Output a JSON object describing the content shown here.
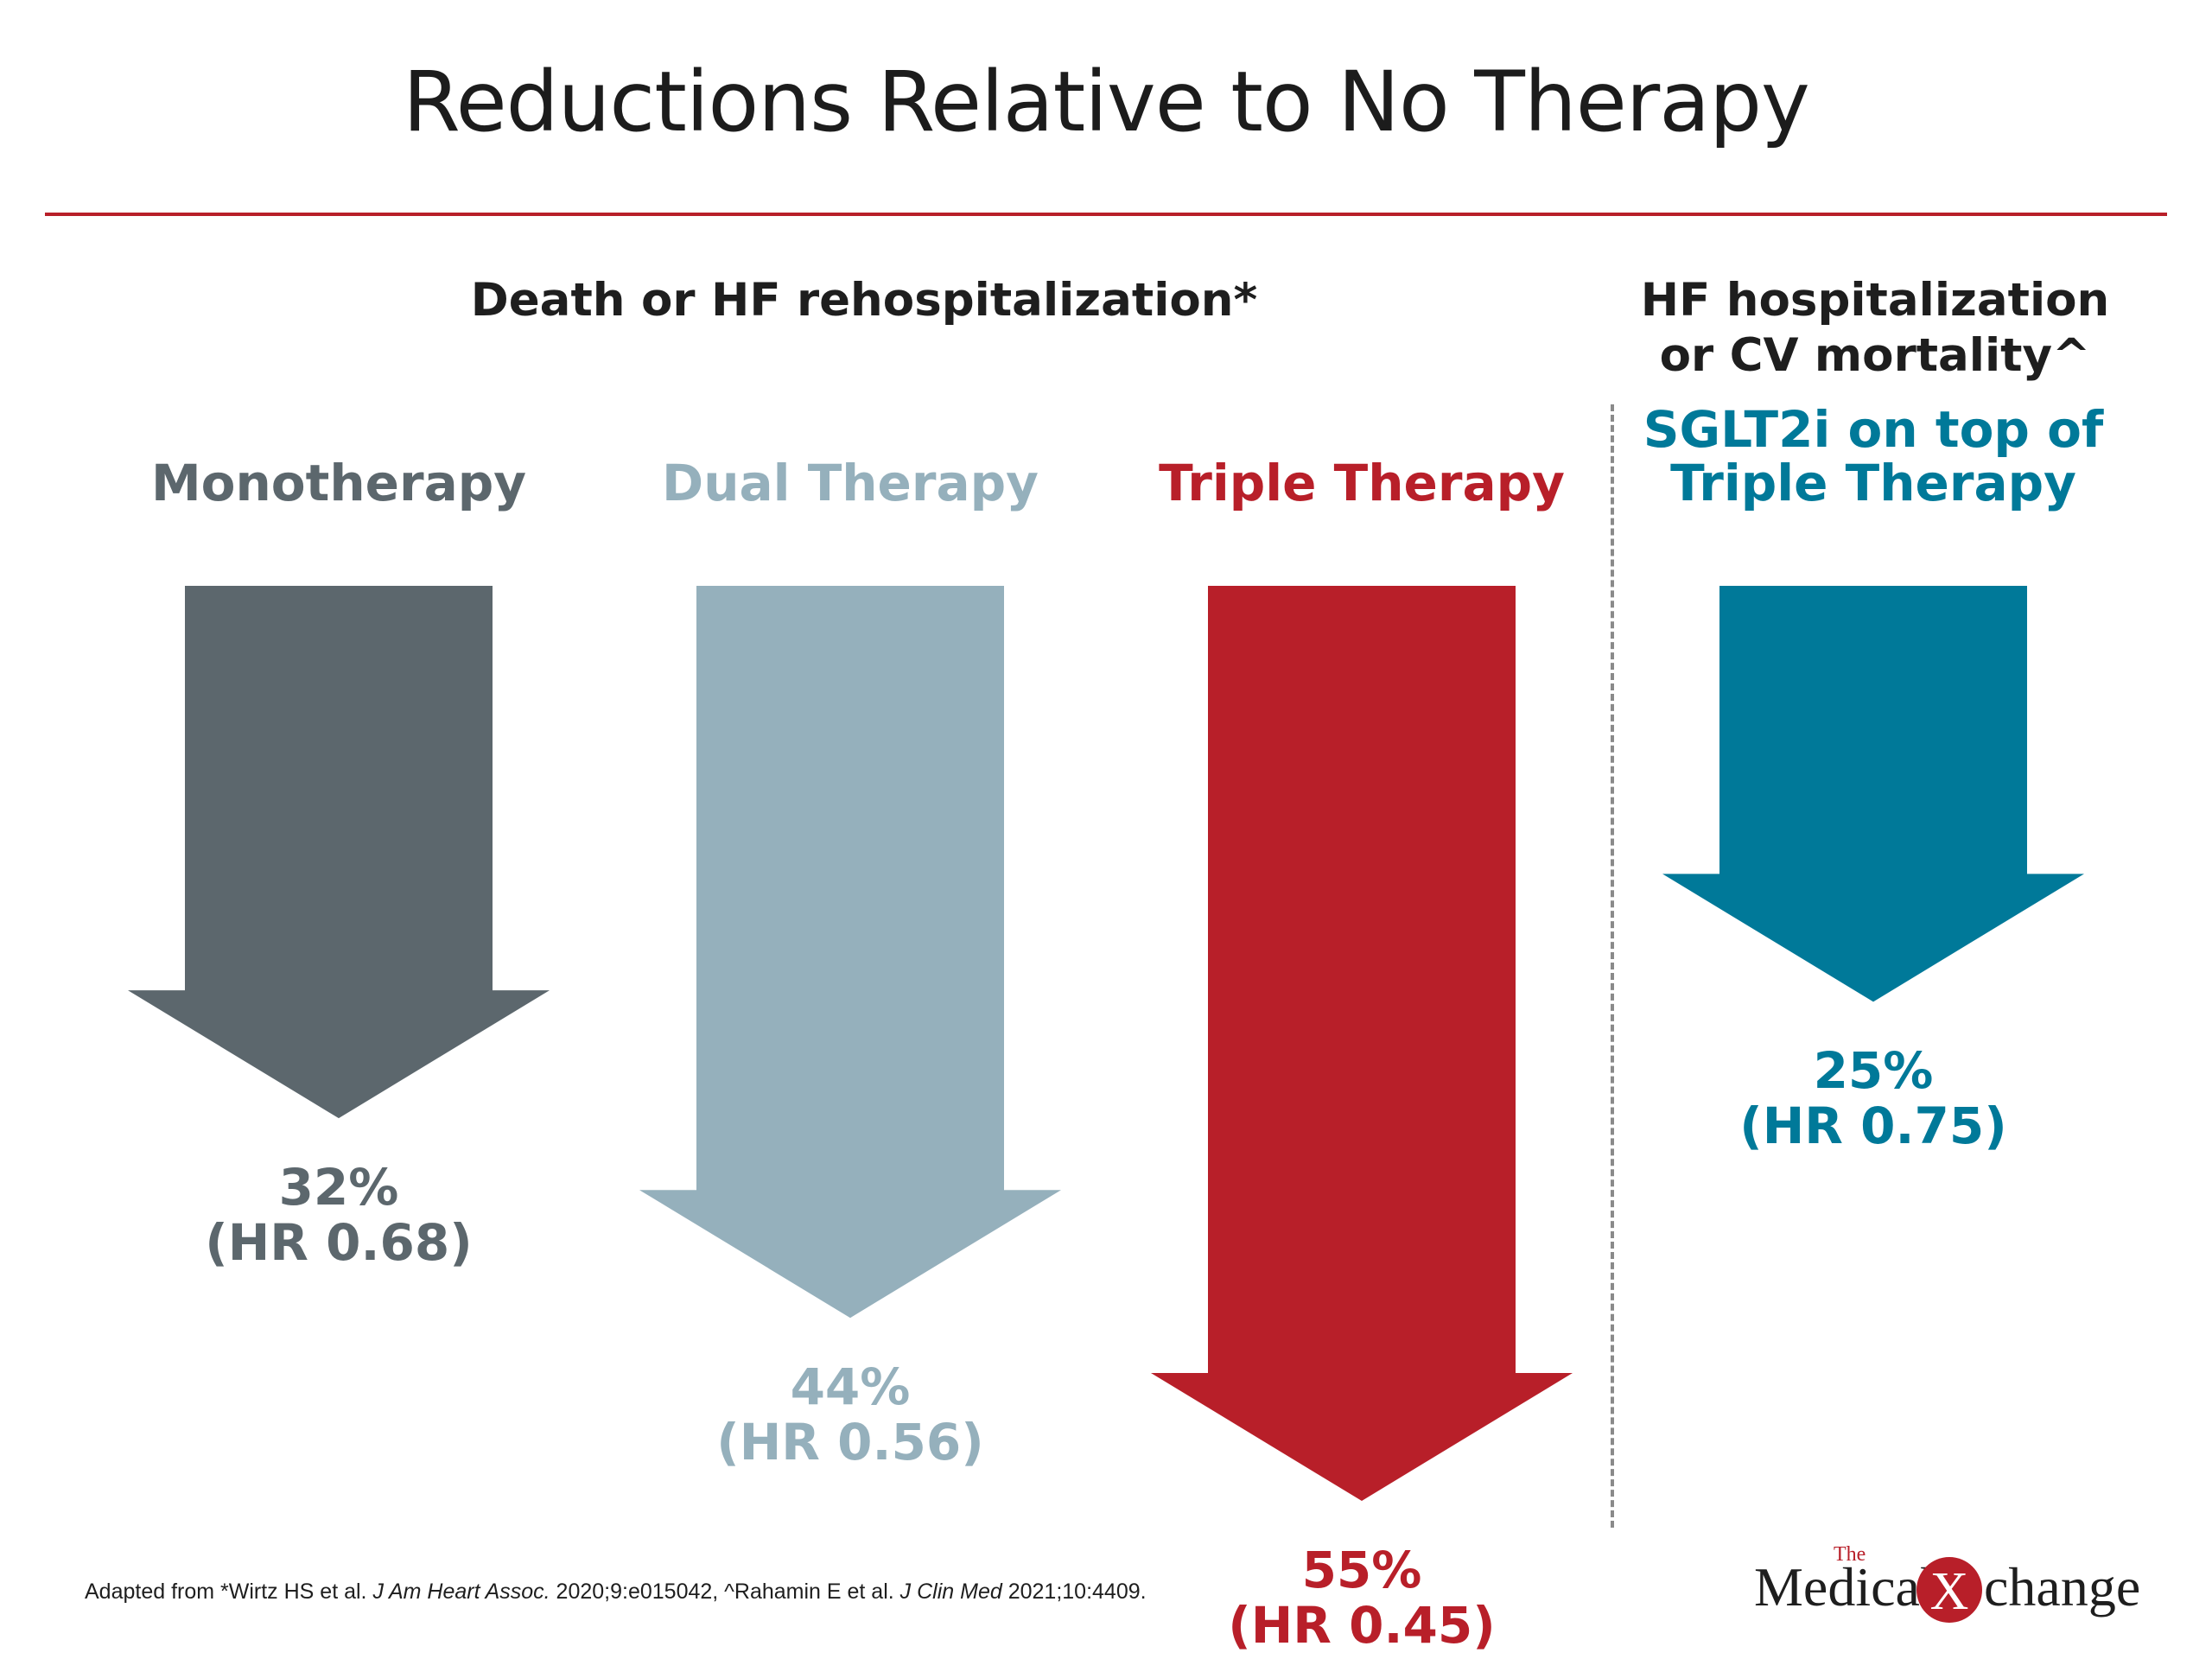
{
  "title": "Reductions Relative to No Therapy",
  "groups": [
    {
      "label": "Death or HF rehospitalization*"
    },
    {
      "line1": "HF hospitalization",
      "line2": "or CV mortality^"
    }
  ],
  "chart_data": {
    "type": "bar",
    "title": "Reductions Relative to No Therapy",
    "unit": "%",
    "categories": [
      "Monotherapy",
      "Dual Therapy",
      "Triple Therapy",
      "SGLT2i on top of Triple Therapy"
    ],
    "values": [
      32,
      44,
      55,
      25
    ],
    "hazard_ratios": [
      0.68,
      0.56,
      0.45,
      0.75
    ],
    "colors": [
      "#5c676d",
      "#95b0bc",
      "#b81f29",
      "#007999"
    ],
    "labels": [
      {
        "line1": "Monotherapy",
        "line2": ""
      },
      {
        "line1": "Dual Therapy",
        "line2": ""
      },
      {
        "line1": "Triple Therapy",
        "line2": ""
      },
      {
        "line1": "SGLT2i on top of",
        "line2": "Triple Therapy"
      }
    ],
    "value_labels": [
      {
        "pct": "32%",
        "hr": "(HR 0.68)"
      },
      {
        "pct": "44%",
        "hr": "(HR 0.56)"
      },
      {
        "pct": "55%",
        "hr": "(HR 0.45)"
      },
      {
        "pct": "25%",
        "hr": "(HR 0.75)"
      }
    ]
  },
  "footnote": {
    "pre": "Adapted from *Wirtz HS et al. ",
    "journal1": "J Am Heart Assoc.",
    "mid": " 2020;9:e015042, ^Rahamin E et al. ",
    "journal2": "J Clin Med",
    "post": " 2021;10:4409."
  },
  "logo": {
    "the": "The",
    "word1": "Medical",
    "word2": "change",
    "mark": "X",
    "color": "#b81f29"
  }
}
